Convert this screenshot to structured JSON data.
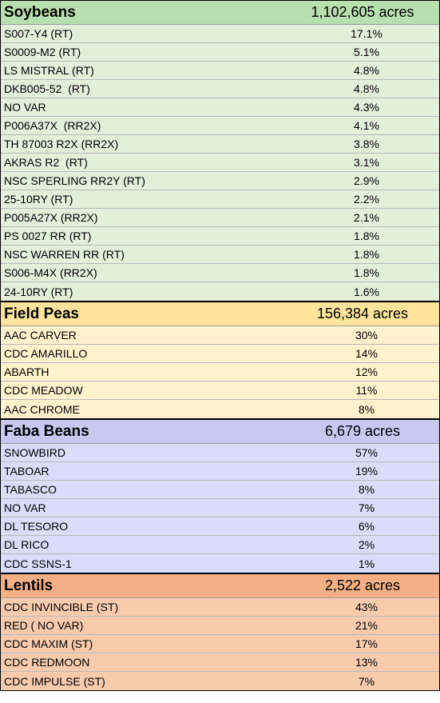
{
  "sections": [
    {
      "name": "Soybeans",
      "acres": "1,102,605 acres",
      "header_color": "#b9dfb0",
      "row_color": "#e2efd9",
      "rows": [
        {
          "variety": "S007-Y4 (RT)",
          "share": "17.1%"
        },
        {
          "variety": "S0009-M2 (RT)",
          "share": "5.1%"
        },
        {
          "variety": "LS MISTRAL (RT)",
          "share": "4.8%"
        },
        {
          "variety": "DKB005-52  (RT)",
          "share": "4.8%"
        },
        {
          "variety": "NO VAR",
          "share": "4.3%"
        },
        {
          "variety": "P006A37X  (RR2X)",
          "share": "4.1%"
        },
        {
          "variety": "TH 87003 R2X (RR2X)",
          "share": "3.8%"
        },
        {
          "variety": "AKRAS R2  (RT)",
          "share": "3.1%"
        },
        {
          "variety": "NSC SPERLING RR2Y (RT)",
          "share": "2.9%"
        },
        {
          "variety": "25-10RY (RT)",
          "share": "2.2%"
        },
        {
          "variety": "P005A27X (RR2X)",
          "share": "2.1%"
        },
        {
          "variety": "PS 0027 RR (RT)",
          "share": "1.8%"
        },
        {
          "variety": "NSC WARREN RR (RT)",
          "share": "1.8%"
        },
        {
          "variety": "S006-M4X (RR2X)",
          "share": "1.8%"
        },
        {
          "variety": "24-10RY (RT)",
          "share": "1.6%"
        }
      ]
    },
    {
      "name": "Field Peas",
      "acres": "156,384 acres",
      "header_color": "#fde49a",
      "row_color": "#fff2cc",
      "rows": [
        {
          "variety": "AAC CARVER",
          "share": "30%"
        },
        {
          "variety": "CDC AMARILLO",
          "share": "14%"
        },
        {
          "variety": "ABARTH",
          "share": "12%"
        },
        {
          "variety": "CDC MEADOW",
          "share": "11%"
        },
        {
          "variety": "AAC CHROME",
          "share": "8%"
        }
      ]
    },
    {
      "name": "Faba Beans",
      "acres": "6,679 acres",
      "header_color": "#c7c7f0",
      "row_color": "#dcdcf9",
      "rows": [
        {
          "variety": "SNOWBIRD",
          "share": "57%"
        },
        {
          "variety": "TABOAR",
          "share": "19%"
        },
        {
          "variety": "TABASCO",
          "share": "8%"
        },
        {
          "variety": "NO VAR",
          "share": "7%"
        },
        {
          "variety": "DL TESORO",
          "share": "6%"
        },
        {
          "variety": "DL RICO",
          "share": "2%"
        },
        {
          "variety": "CDC SSNS-1",
          "share": "1%"
        }
      ]
    },
    {
      "name": "Lentils",
      "acres": "2,522 acres",
      "header_color": "#f4b084",
      "row_color": "#f8cbad",
      "rows": [
        {
          "variety": "CDC INVINCIBLE (ST)",
          "share": "43%"
        },
        {
          "variety": "RED ( NO VAR)",
          "share": "21%"
        },
        {
          "variety": "CDC MAXIM (ST)",
          "share": "17%"
        },
        {
          "variety": "CDC REDMOON",
          "share": "13%"
        },
        {
          "variety": "CDC IMPULSE (ST)",
          "share": "7%"
        }
      ]
    }
  ]
}
